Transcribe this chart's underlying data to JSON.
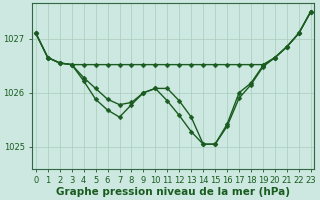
{
  "background_color": "#cce8e0",
  "grid_color": "#aaccbb",
  "line_color": "#1a5c20",
  "marker": "D",
  "markersize": 2.5,
  "linewidth": 1.0,
  "xlabel": "Graphe pression niveau de la mer (hPa)",
  "xlabel_fontsize": 7.5,
  "tick_fontsize": 6.0,
  "hours": [
    0,
    1,
    2,
    3,
    4,
    5,
    6,
    7,
    8,
    9,
    10,
    11,
    12,
    13,
    14,
    15,
    16,
    17,
    18,
    19,
    20,
    21,
    22,
    23
  ],
  "line_top": [
    1027.1,
    1026.65,
    1026.55,
    1026.52,
    1026.52,
    1026.52,
    1026.52,
    1026.52,
    1026.52,
    1026.52,
    1026.52,
    1026.52,
    1026.52,
    1026.52,
    1026.52,
    1026.52,
    1026.52,
    1026.52,
    1026.52,
    1026.52,
    1026.65,
    1026.85,
    1027.1,
    1027.5
  ],
  "line_mid": [
    1027.1,
    1026.65,
    1026.55,
    1026.52,
    1026.28,
    1026.08,
    1025.88,
    1025.78,
    1025.82,
    1026.0,
    1026.08,
    1026.08,
    1025.85,
    1025.55,
    1025.05,
    1025.05,
    1025.38,
    1025.9,
    1026.15,
    1026.48,
    1026.65,
    1026.85,
    1027.1,
    1027.5
  ],
  "line_bot": [
    1027.1,
    1026.65,
    1026.55,
    1026.52,
    1026.22,
    1025.88,
    1025.68,
    1025.55,
    1025.78,
    1026.0,
    1026.08,
    1025.85,
    1025.58,
    1025.28,
    1025.05,
    1025.05,
    1025.42,
    1026.0,
    1026.18,
    1026.5,
    1026.65,
    1026.85,
    1027.1,
    1027.5
  ],
  "ylim": [
    1024.6,
    1027.65
  ],
  "yticks": [
    1025,
    1026,
    1027
  ],
  "xlim": [
    -0.3,
    23.3
  ]
}
